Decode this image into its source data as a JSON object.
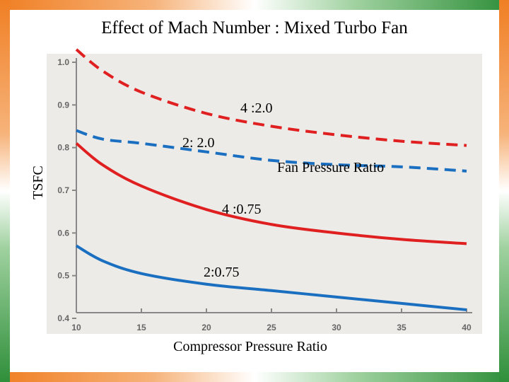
{
  "chart_data": {
    "type": "line",
    "title": "Effect of Mach Number : Mixed Turbo Fan",
    "xlabel": "Compressor Pressure Ratio",
    "ylabel": "TSFC",
    "xlim": [
      10,
      40
    ],
    "ylim": [
      0.4,
      1.0
    ],
    "xticks": [
      "10",
      "15",
      "20",
      "25",
      "30",
      "35",
      "40"
    ],
    "yticks": [
      "0.4",
      "0.5",
      "0.6",
      "0.7",
      "0.8",
      "0.9",
      "1.0"
    ],
    "annotation": "Fan Pressure Ratio",
    "grid": false,
    "series": [
      {
        "name": "4 :2.0",
        "color": "#e02020",
        "style": "dashed",
        "x": [
          10,
          12,
          15,
          20,
          25,
          30,
          35,
          40
        ],
        "y": [
          1.03,
          0.98,
          0.93,
          0.88,
          0.85,
          0.83,
          0.815,
          0.805
        ]
      },
      {
        "name": "2: 2.0",
        "color": "#1a6fc0",
        "style": "dashed",
        "x": [
          10,
          12,
          15,
          20,
          25,
          30,
          35,
          40
        ],
        "y": [
          0.84,
          0.82,
          0.81,
          0.79,
          0.77,
          0.76,
          0.755,
          0.745
        ]
      },
      {
        "name": "4 :0.75",
        "color": "#e02020",
        "style": "solid",
        "x": [
          10,
          12,
          15,
          20,
          25,
          30,
          35,
          40
        ],
        "y": [
          0.81,
          0.76,
          0.71,
          0.655,
          0.62,
          0.6,
          0.585,
          0.575
        ]
      },
      {
        "name": "2:0.75",
        "color": "#1a6fc0",
        "style": "solid",
        "x": [
          10,
          12,
          15,
          20,
          25,
          30,
          35,
          40
        ],
        "y": [
          0.57,
          0.535,
          0.505,
          0.48,
          0.465,
          0.45,
          0.435,
          0.42
        ]
      }
    ]
  }
}
